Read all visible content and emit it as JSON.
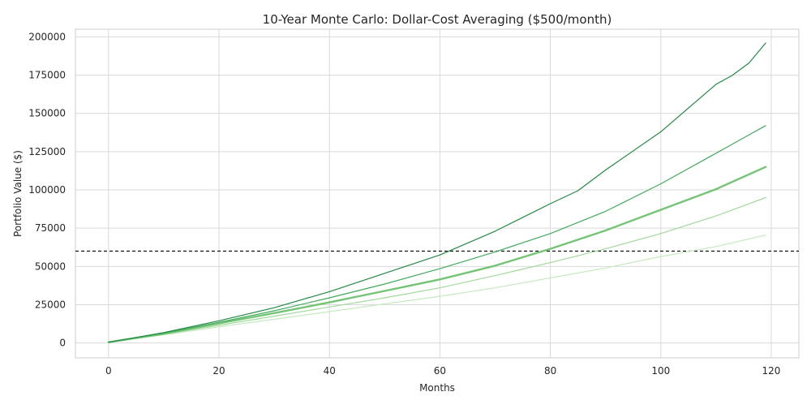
{
  "chart_data": {
    "type": "line",
    "title": "10-Year Monte Carlo: Dollar-Cost Averaging ($500/month)",
    "xlabel": "Months",
    "ylabel": "Portfolio Value ($)",
    "xlim": [
      -6,
      125
    ],
    "ylim": [
      -9750,
      205000
    ],
    "x_ticks": [
      0,
      20,
      40,
      60,
      80,
      100,
      120
    ],
    "y_ticks": [
      0,
      25000,
      50000,
      75000,
      100000,
      125000,
      150000,
      175000,
      200000
    ],
    "grid": true,
    "reference_line": {
      "y": 60000,
      "style": "dashed",
      "color": "#000000"
    },
    "series": [
      {
        "color": "#238b45",
        "width": 1.2,
        "points": [
          [
            0,
            500
          ],
          [
            10,
            6800
          ],
          [
            20,
            14500
          ],
          [
            30,
            23000
          ],
          [
            40,
            33500
          ],
          [
            50,
            45500
          ],
          [
            60,
            57500
          ],
          [
            70,
            73000
          ],
          [
            80,
            91000
          ],
          [
            85,
            99500
          ],
          [
            90,
            113000
          ],
          [
            100,
            138000
          ],
          [
            110,
            169000
          ],
          [
            113,
            175000
          ],
          [
            116,
            183000
          ],
          [
            119,
            196000
          ]
        ]
      },
      {
        "color": "#41ab5d",
        "width": 1.2,
        "points": [
          [
            0,
            500
          ],
          [
            10,
            6400
          ],
          [
            20,
            13500
          ],
          [
            30,
            21000
          ],
          [
            40,
            29500
          ],
          [
            50,
            38500
          ],
          [
            60,
            48500
          ],
          [
            70,
            59500
          ],
          [
            80,
            71500
          ],
          [
            90,
            86000
          ],
          [
            100,
            104000
          ],
          [
            110,
            124000
          ],
          [
            116,
            136000
          ],
          [
            119,
            142000
          ]
        ]
      },
      {
        "color": "#74c476",
        "width": 2.4,
        "points": [
          [
            0,
            500
          ],
          [
            10,
            6000
          ],
          [
            20,
            12800
          ],
          [
            30,
            19500
          ],
          [
            40,
            26500
          ],
          [
            50,
            34000
          ],
          [
            60,
            41500
          ],
          [
            70,
            50500
          ],
          [
            80,
            61500
          ],
          [
            90,
            73500
          ],
          [
            100,
            87000
          ],
          [
            110,
            100500
          ],
          [
            119,
            115000
          ]
        ]
      },
      {
        "color": "#a1d99b",
        "width": 1.2,
        "points": [
          [
            0,
            500
          ],
          [
            10,
            5700
          ],
          [
            20,
            11500
          ],
          [
            30,
            17500
          ],
          [
            40,
            23500
          ],
          [
            50,
            29500
          ],
          [
            60,
            36000
          ],
          [
            70,
            44000
          ],
          [
            80,
            52500
          ],
          [
            90,
            61500
          ],
          [
            100,
            71500
          ],
          [
            110,
            83000
          ],
          [
            119,
            95000
          ]
        ]
      },
      {
        "color": "#c7e9c0",
        "width": 1.2,
        "points": [
          [
            0,
            500
          ],
          [
            10,
            5300
          ],
          [
            20,
            10500
          ],
          [
            30,
            15500
          ],
          [
            40,
            20500
          ],
          [
            50,
            25500
          ],
          [
            60,
            30500
          ],
          [
            70,
            36000
          ],
          [
            80,
            42500
          ],
          [
            90,
            49000
          ],
          [
            100,
            56500
          ],
          [
            110,
            63000
          ],
          [
            119,
            70500
          ]
        ]
      }
    ]
  }
}
